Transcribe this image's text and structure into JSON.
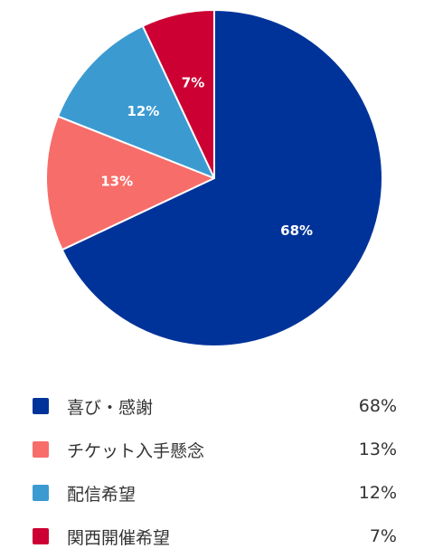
{
  "chart_data": {
    "type": "pie",
    "categories": [
      "喜び・感謝",
      "チケット入手懸念",
      "配信希望",
      "関西開催希望"
    ],
    "values": [
      68,
      13,
      12,
      7
    ],
    "value_labels": [
      "68%",
      "13%",
      "12%",
      "7%"
    ],
    "colors": [
      "#003399",
      "#f76d6a",
      "#3b9bd1",
      "#cc0033"
    ],
    "start_angle": "12 o'clock",
    "direction": "clockwise",
    "legend_position": "bottom"
  }
}
